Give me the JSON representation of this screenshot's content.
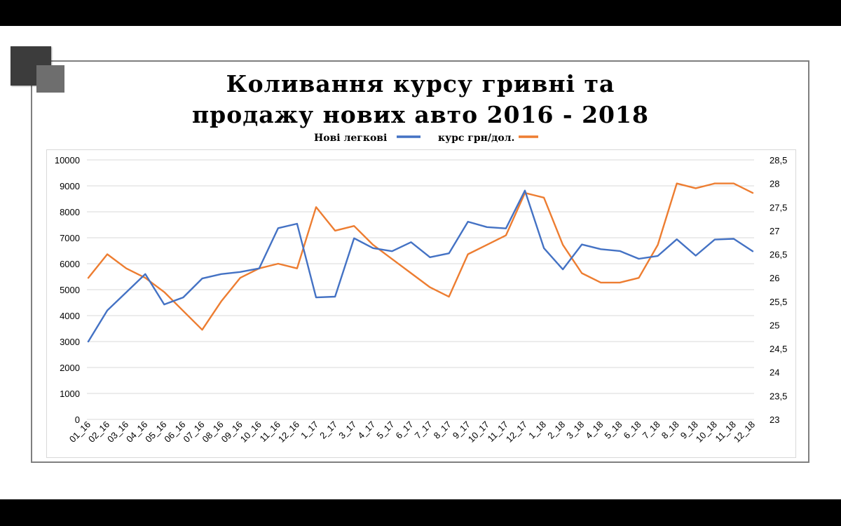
{
  "title_line1": "Коливання курсу гривні та",
  "title_line2": "продажу нових авто 2016 - 2018",
  "chart_data": {
    "type": "line",
    "title": "Коливання курсу гривні та продажу нових авто 2016 - 2018",
    "categories": [
      "01_16",
      "02_16",
      "03_16",
      "04_16",
      "05_16",
      "06_16",
      "07_16",
      "08_16",
      "09_16",
      "10_16",
      "11_16",
      "12_16",
      "1_17",
      "2_17",
      "3_17",
      "4_17",
      "5_17",
      "6_17",
      "7_17",
      "8_17",
      "9_17",
      "10_17",
      "11_17",
      "12_17",
      "1_18",
      "2_18",
      "3_18",
      "4_18",
      "5_18",
      "6_18",
      "7_18",
      "8_18",
      "9_18",
      "10_18",
      "11_18",
      "12_18"
    ],
    "series": [
      {
        "name": "Нові легкові",
        "axis": "left",
        "color": "#4472c4",
        "values": [
          3000,
          4200,
          4900,
          5600,
          4430,
          4700,
          5430,
          5600,
          5680,
          5820,
          7370,
          7540,
          4700,
          4730,
          6980,
          6600,
          6480,
          6830,
          6250,
          6400,
          7620,
          7410,
          7360,
          8820,
          6600,
          5780,
          6740,
          6560,
          6490,
          6190,
          6300,
          6940,
          6310,
          6930,
          6960,
          6480
        ]
      },
      {
        "name": "курс грн/дол.",
        "axis": "right",
        "color": "#ed7d31",
        "values": [
          26.0,
          26.5,
          26.2,
          26.0,
          25.7,
          25.3,
          24.9,
          25.5,
          26.0,
          26.2,
          26.3,
          26.2,
          27.5,
          27.0,
          27.1,
          26.7,
          26.4,
          26.1,
          25.8,
          25.6,
          26.5,
          26.7,
          26.9,
          27.8,
          27.7,
          26.7,
          26.1,
          25.9,
          25.9,
          26.0,
          26.7,
          28.0,
          27.9,
          28.0,
          28.0,
          27.8
        ]
      }
    ],
    "y_left": {
      "min": 0,
      "max": 10000,
      "step": 1000,
      "ticks": [
        "0",
        "1000",
        "2000",
        "3000",
        "4000",
        "5000",
        "6000",
        "7000",
        "8000",
        "9000",
        "10000"
      ]
    },
    "y_right": {
      "min": 23,
      "max": 28.5,
      "step": 0.5,
      "ticks": [
        "23",
        "23,5",
        "24",
        "24,5",
        "25",
        "25,5",
        "26",
        "26,5",
        "27",
        "27,5",
        "28",
        "28,5"
      ]
    },
    "grid": true,
    "legend": "top"
  }
}
